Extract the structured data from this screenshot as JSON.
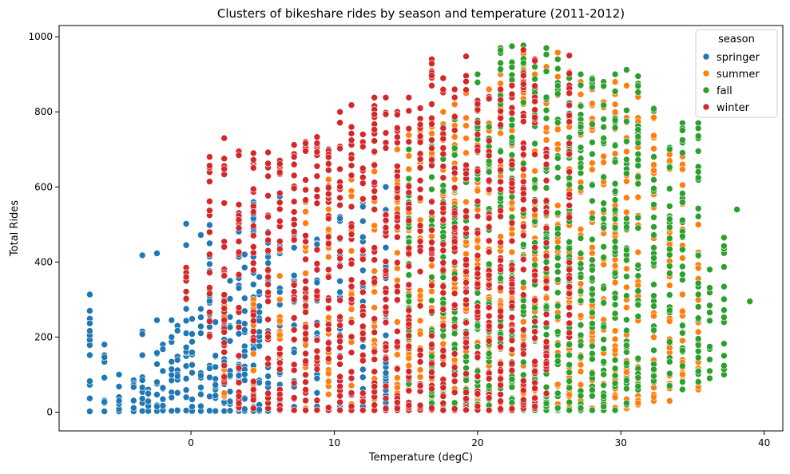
{
  "chart_data": {
    "type": "scatter",
    "title": "Clusters of bikeshare rides by season and temperature (2011-2012)",
    "xlabel": "Temperature (degC)",
    "ylabel": "Total Rides",
    "xlim": [
      -9.2,
      41.3
    ],
    "ylim": [
      -50,
      1030
    ],
    "xticks": [
      0,
      10,
      20,
      30,
      40
    ],
    "yticks": [
      0,
      200,
      400,
      600,
      800,
      1000
    ],
    "grid": false,
    "legend": {
      "title": "season",
      "placement": "top-right"
    },
    "temperature_levels": [
      -7.06,
      -6.04,
      -5.02,
      -4.0,
      -3.39,
      -2.98,
      -2.37,
      -1.96,
      -1.35,
      -0.94,
      -0.33,
      0.08,
      0.69,
      1.3,
      1.71,
      2.32,
      2.73,
      3.34,
      3.75,
      4.36,
      4.77,
      5.38,
      6.2,
      7.2,
      8.0,
      8.8,
      9.6,
      10.4,
      11.2,
      12.0,
      12.8,
      13.6,
      14.4,
      15.2,
      16.0,
      16.8,
      17.6,
      18.4,
      19.2,
      20.0,
      20.8,
      21.6,
      22.4,
      23.2,
      24.0,
      24.8,
      25.6,
      26.4,
      27.2,
      28.0,
      28.8,
      29.6,
      30.4,
      31.2,
      32.3,
      33.4,
      34.3,
      35.4,
      36.2,
      37.2
    ],
    "series": [
      {
        "name": "springer",
        "color": "#1f77b4",
        "columns": [
          {
            "x": -7.06,
            "y": [
              2,
              315
            ]
          },
          {
            "x": -6.04,
            "y": [
              2,
              180
            ]
          },
          {
            "x": -5.02,
            "y": [
              2,
              100
            ]
          },
          {
            "x": -4.0,
            "y": [
              2,
              85
            ]
          },
          {
            "x": -3.39,
            "y": [
              3,
              215
            ]
          },
          {
            "x": -2.98,
            "y": [
              3,
              60
            ]
          },
          {
            "x": -2.37,
            "y": [
              3,
              245
            ]
          },
          {
            "x": -1.96,
            "y": [
              3,
              180
            ]
          },
          {
            "x": -1.35,
            "y": [
              3,
              245
            ]
          },
          {
            "x": -0.94,
            "y": [
              3,
              230
            ]
          },
          {
            "x": -0.33,
            "y": [
              3,
              275
            ]
          },
          {
            "x": 0.08,
            "y": [
              3,
              250
            ]
          },
          {
            "x": 0.69,
            "y": [
              3,
              275
            ]
          },
          {
            "x": 1.3,
            "y": [
              3,
              500
            ]
          },
          {
            "x": 1.71,
            "y": [
              3,
              240
            ]
          },
          {
            "x": 2.32,
            "y": [
              3,
              300
            ]
          },
          {
            "x": 2.73,
            "y": [
              3,
              350
            ]
          },
          {
            "x": 3.34,
            "y": [
              3,
              530
            ]
          },
          {
            "x": 3.75,
            "y": [
              3,
              420
            ]
          },
          {
            "x": 4.36,
            "y": [
              3,
              560
            ]
          },
          {
            "x": 4.77,
            "y": [
              3,
              360
            ]
          },
          {
            "x": 5.38,
            "y": [
              3,
              480
            ]
          },
          {
            "x": 6.2,
            "y": [
              3,
              575
            ]
          },
          {
            "x": 7.2,
            "y": [
              5,
              480
            ]
          },
          {
            "x": 8.8,
            "y": [
              5,
              460
            ]
          },
          {
            "x": 10.4,
            "y": [
              10,
              520
            ]
          },
          {
            "x": 12.0,
            "y": [
              10,
              560
            ]
          },
          {
            "x": 13.6,
            "y": [
              10,
              600
            ]
          }
        ],
        "extra_points": [
          {
            "x": -7.06,
            "y": 152
          },
          {
            "x": -3.39,
            "y": 418
          },
          {
            "x": -2.37,
            "y": 423
          },
          {
            "x": -0.33,
            "y": 354
          },
          {
            "x": -0.33,
            "y": 445
          },
          {
            "x": -0.33,
            "y": 502
          },
          {
            "x": 0.69,
            "y": 472
          }
        ]
      },
      {
        "name": "summer",
        "color": "#ff7f0e",
        "columns": [
          {
            "x": 2.32,
            "y": [
              40,
              285
            ]
          },
          {
            "x": 4.36,
            "y": [
              40,
              300
            ]
          },
          {
            "x": 6.2,
            "y": [
              10,
              510
            ]
          },
          {
            "x": 8.0,
            "y": [
              10,
              560
            ]
          },
          {
            "x": 9.6,
            "y": [
              10,
              680
            ]
          },
          {
            "x": 11.2,
            "y": [
              10,
              620
            ]
          },
          {
            "x": 12.8,
            "y": [
              10,
              660
            ]
          },
          {
            "x": 14.4,
            "y": [
              10,
              700
            ]
          },
          {
            "x": 15.2,
            "y": [
              10,
              740
            ]
          },
          {
            "x": 16.0,
            "y": [
              10,
              760
            ]
          },
          {
            "x": 16.8,
            "y": [
              10,
              760
            ]
          },
          {
            "x": 17.6,
            "y": [
              10,
              800
            ]
          },
          {
            "x": 18.4,
            "y": [
              10,
              820
            ]
          },
          {
            "x": 19.2,
            "y": [
              10,
              850
            ]
          },
          {
            "x": 20.0,
            "y": [
              10,
              880
            ]
          },
          {
            "x": 20.8,
            "y": [
              10,
              860
            ]
          },
          {
            "x": 21.6,
            "y": [
              10,
              900
            ]
          },
          {
            "x": 22.4,
            "y": [
              10,
              930
            ]
          },
          {
            "x": 23.2,
            "y": [
              10,
              960
            ]
          },
          {
            "x": 24.0,
            "y": [
              10,
              900
            ]
          },
          {
            "x": 24.8,
            "y": [
              10,
              920
            ]
          },
          {
            "x": 25.6,
            "y": [
              10,
              958
            ]
          },
          {
            "x": 26.4,
            "y": [
              10,
              950
            ]
          },
          {
            "x": 27.2,
            "y": [
              10,
              880
            ]
          },
          {
            "x": 28.0,
            "y": [
              10,
              860
            ]
          },
          {
            "x": 28.8,
            "y": [
              10,
              870
            ]
          },
          {
            "x": 29.6,
            "y": [
              10,
              880
            ]
          },
          {
            "x": 30.4,
            "y": [
              10,
              870
            ]
          },
          {
            "x": 31.2,
            "y": [
              20,
              840
            ]
          },
          {
            "x": 32.3,
            "y": [
              30,
              800
            ]
          },
          {
            "x": 33.4,
            "y": [
              30,
              690
            ]
          },
          {
            "x": 34.3,
            "y": [
              60,
              690
            ]
          },
          {
            "x": 35.4,
            "y": [
              60,
              500
            ]
          }
        ],
        "extra_points": []
      },
      {
        "name": "fall",
        "color": "#2ca02c",
        "columns": [
          {
            "x": 15.2,
            "y": [
              20,
              700
            ]
          },
          {
            "x": 16.8,
            "y": [
              20,
              710
            ]
          },
          {
            "x": 17.6,
            "y": [
              20,
              760
            ]
          },
          {
            "x": 18.4,
            "y": [
              20,
              780
            ]
          },
          {
            "x": 19.2,
            "y": [
              20,
              650
            ]
          },
          {
            "x": 20.0,
            "y": [
              20,
              900
            ]
          },
          {
            "x": 20.8,
            "y": [
              5,
              760
            ]
          },
          {
            "x": 21.6,
            "y": [
              5,
              970
            ]
          },
          {
            "x": 22.4,
            "y": [
              5,
              975
            ]
          },
          {
            "x": 23.2,
            "y": [
              5,
              977
            ]
          },
          {
            "x": 24.0,
            "y": [
              5,
              920
            ]
          },
          {
            "x": 24.8,
            "y": [
              5,
              970
            ]
          },
          {
            "x": 25.6,
            "y": [
              5,
              940
            ]
          },
          {
            "x": 26.4,
            "y": [
              5,
              890
            ]
          },
          {
            "x": 27.2,
            "y": [
              5,
              900
            ]
          },
          {
            "x": 28.0,
            "y": [
              5,
              890
            ]
          },
          {
            "x": 28.8,
            "y": [
              5,
              880
            ]
          },
          {
            "x": 29.6,
            "y": [
              5,
              900
            ]
          },
          {
            "x": 30.4,
            "y": [
              20,
              912
            ]
          },
          {
            "x": 31.2,
            "y": [
              60,
              895
            ]
          },
          {
            "x": 32.3,
            "y": [
              80,
              810
            ]
          },
          {
            "x": 33.4,
            "y": [
              70,
              705
            ]
          },
          {
            "x": 34.3,
            "y": [
              60,
              770
            ]
          },
          {
            "x": 35.4,
            "y": [
              80,
              770
            ]
          },
          {
            "x": 36.2,
            "y": [
              90,
              380
            ]
          },
          {
            "x": 37.2,
            "y": [
              100,
              465
            ]
          }
        ],
        "extra_points": [
          {
            "x": 38.1,
            "y": 540
          },
          {
            "x": 39.0,
            "y": 295
          }
        ]
      },
      {
        "name": "winter",
        "color": "#d62728",
        "columns": [
          {
            "x": -0.33,
            "y": [
              300,
              385
            ]
          },
          {
            "x": 1.3,
            "y": [
              200,
              680
            ]
          },
          {
            "x": 2.32,
            "y": [
              80,
              730
            ]
          },
          {
            "x": 3.34,
            "y": [
              10,
              695
            ]
          },
          {
            "x": 4.36,
            "y": [
              10,
              690
            ]
          },
          {
            "x": 5.38,
            "y": [
              10,
              692
            ]
          },
          {
            "x": 6.2,
            "y": [
              5,
              670
            ]
          },
          {
            "x": 7.2,
            "y": [
              5,
              712
            ]
          },
          {
            "x": 8.0,
            "y": [
              5,
              720
            ]
          },
          {
            "x": 8.8,
            "y": [
              5,
              733
            ]
          },
          {
            "x": 9.6,
            "y": [
              5,
              700
            ]
          },
          {
            "x": 10.4,
            "y": [
              5,
              800
            ]
          },
          {
            "x": 11.2,
            "y": [
              5,
              818
            ]
          },
          {
            "x": 12.0,
            "y": [
              5,
              740
            ]
          },
          {
            "x": 12.8,
            "y": [
              5,
              838
            ]
          },
          {
            "x": 13.6,
            "y": [
              5,
              838
            ]
          },
          {
            "x": 14.4,
            "y": [
              5,
              800
            ]
          },
          {
            "x": 15.2,
            "y": [
              5,
              838
            ]
          },
          {
            "x": 16.0,
            "y": [
              5,
              810
            ]
          },
          {
            "x": 16.8,
            "y": [
              5,
              940
            ]
          },
          {
            "x": 17.6,
            "y": [
              5,
              890
            ]
          },
          {
            "x": 18.4,
            "y": [
              5,
              860
            ]
          },
          {
            "x": 19.2,
            "y": [
              5,
              948
            ]
          },
          {
            "x": 20.0,
            "y": [
              5,
              830
            ]
          },
          {
            "x": 20.8,
            "y": [
              5,
              840
            ]
          },
          {
            "x": 21.6,
            "y": [
              5,
              860
            ]
          },
          {
            "x": 22.4,
            "y": [
              5,
              870
            ]
          },
          {
            "x": 23.2,
            "y": [
              10,
              965
            ]
          },
          {
            "x": 24.0,
            "y": [
              10,
              940
            ]
          },
          {
            "x": 24.8,
            "y": [
              50,
              700
            ]
          },
          {
            "x": 26.4,
            "y": [
              200,
              950
            ]
          }
        ],
        "extra_points": []
      }
    ]
  }
}
